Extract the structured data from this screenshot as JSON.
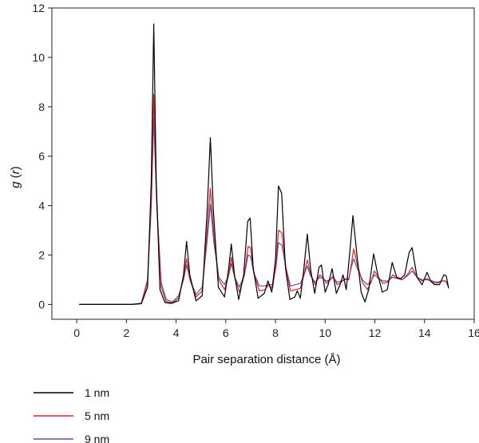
{
  "chart_data": {
    "type": "line",
    "xlabel": "Pair separation distance (Å)",
    "ylabel": {
      "g": "g",
      "r": "r"
    },
    "xlim": [
      -1,
      16
    ],
    "ylim": [
      -0.6,
      12
    ],
    "xticks": [
      0,
      2,
      4,
      6,
      8,
      10,
      12,
      14,
      16
    ],
    "yticks": [
      0,
      2,
      4,
      6,
      8,
      10,
      12
    ],
    "grid": false,
    "legend": "bottom-left below plot",
    "series": [
      {
        "name": "1 nm",
        "color": "#000000",
        "points": [
          [
            0.1,
            0
          ],
          [
            2.2,
            0
          ],
          [
            2.6,
            0.03
          ],
          [
            2.85,
            0.7
          ],
          [
            3.0,
            5.0
          ],
          [
            3.1,
            11.35
          ],
          [
            3.2,
            5.0
          ],
          [
            3.35,
            0.6
          ],
          [
            3.55,
            0.08
          ],
          [
            3.8,
            0.04
          ],
          [
            4.1,
            0.15
          ],
          [
            4.3,
            1.2
          ],
          [
            4.42,
            2.55
          ],
          [
            4.55,
            1.2
          ],
          [
            4.8,
            0.15
          ],
          [
            5.05,
            0.35
          ],
          [
            5.25,
            3.8
          ],
          [
            5.38,
            6.75
          ],
          [
            5.5,
            3.8
          ],
          [
            5.7,
            0.7
          ],
          [
            5.95,
            0.3
          ],
          [
            6.12,
            1.5
          ],
          [
            6.22,
            2.45
          ],
          [
            6.35,
            1.2
          ],
          [
            6.52,
            0.2
          ],
          [
            6.72,
            1.2
          ],
          [
            6.88,
            3.35
          ],
          [
            6.98,
            3.5
          ],
          [
            7.1,
            1.5
          ],
          [
            7.3,
            0.25
          ],
          [
            7.55,
            0.45
          ],
          [
            7.7,
            0.95
          ],
          [
            7.85,
            0.5
          ],
          [
            8.0,
            1.8
          ],
          [
            8.12,
            4.8
          ],
          [
            8.25,
            4.5
          ],
          [
            8.4,
            1.5
          ],
          [
            8.58,
            0.2
          ],
          [
            8.78,
            0.3
          ],
          [
            8.88,
            0.55
          ],
          [
            9.0,
            0.25
          ],
          [
            9.15,
            1.5
          ],
          [
            9.28,
            2.85
          ],
          [
            9.42,
            1.4
          ],
          [
            9.58,
            0.45
          ],
          [
            9.75,
            1.5
          ],
          [
            9.85,
            1.6
          ],
          [
            10.0,
            0.5
          ],
          [
            10.12,
            0.8
          ],
          [
            10.28,
            1.45
          ],
          [
            10.45,
            0.45
          ],
          [
            10.6,
            0.8
          ],
          [
            10.72,
            1.2
          ],
          [
            10.85,
            0.6
          ],
          [
            11.0,
            2.2
          ],
          [
            11.12,
            3.6
          ],
          [
            11.28,
            2.0
          ],
          [
            11.45,
            0.5
          ],
          [
            11.6,
            0.1
          ],
          [
            11.75,
            0.6
          ],
          [
            11.95,
            2.05
          ],
          [
            12.12,
            1.2
          ],
          [
            12.3,
            0.5
          ],
          [
            12.5,
            0.6
          ],
          [
            12.7,
            1.7
          ],
          [
            12.88,
            1.1
          ],
          [
            13.05,
            1.05
          ],
          [
            13.2,
            1.2
          ],
          [
            13.38,
            2.1
          ],
          [
            13.5,
            2.3
          ],
          [
            13.7,
            1.1
          ],
          [
            13.9,
            0.8
          ],
          [
            14.1,
            1.3
          ],
          [
            14.25,
            0.95
          ],
          [
            14.4,
            0.8
          ],
          [
            14.6,
            0.8
          ],
          [
            14.78,
            1.2
          ],
          [
            14.88,
            1.15
          ],
          [
            14.97,
            0.65
          ]
        ]
      },
      {
        "name": "5 nm",
        "color": "#e02020",
        "points": [
          [
            0.1,
            0
          ],
          [
            2.2,
            0
          ],
          [
            2.6,
            0.04
          ],
          [
            2.85,
            0.9
          ],
          [
            3.0,
            4.2
          ],
          [
            3.1,
            8.5
          ],
          [
            3.22,
            4.2
          ],
          [
            3.4,
            0.7
          ],
          [
            3.6,
            0.12
          ],
          [
            3.85,
            0.06
          ],
          [
            4.1,
            0.25
          ],
          [
            4.3,
            1.1
          ],
          [
            4.42,
            1.85
          ],
          [
            4.56,
            1.0
          ],
          [
            4.8,
            0.3
          ],
          [
            5.05,
            0.55
          ],
          [
            5.25,
            3.0
          ],
          [
            5.38,
            4.7
          ],
          [
            5.52,
            2.8
          ],
          [
            5.72,
            1.0
          ],
          [
            5.95,
            0.6
          ],
          [
            6.12,
            1.2
          ],
          [
            6.22,
            1.9
          ],
          [
            6.36,
            1.1
          ],
          [
            6.55,
            0.5
          ],
          [
            6.75,
            1.2
          ],
          [
            6.9,
            2.35
          ],
          [
            7.0,
            2.3
          ],
          [
            7.12,
            1.3
          ],
          [
            7.35,
            0.55
          ],
          [
            7.58,
            0.6
          ],
          [
            7.72,
            0.8
          ],
          [
            7.88,
            0.65
          ],
          [
            8.02,
            1.6
          ],
          [
            8.12,
            3.0
          ],
          [
            8.26,
            2.9
          ],
          [
            8.42,
            1.5
          ],
          [
            8.6,
            0.55
          ],
          [
            8.8,
            0.6
          ],
          [
            9.0,
            0.65
          ],
          [
            9.15,
            1.2
          ],
          [
            9.28,
            1.8
          ],
          [
            9.42,
            1.2
          ],
          [
            9.6,
            0.8
          ],
          [
            9.78,
            1.2
          ],
          [
            9.9,
            1.1
          ],
          [
            10.05,
            0.85
          ],
          [
            10.2,
            1.0
          ],
          [
            10.32,
            1.15
          ],
          [
            10.48,
            0.8
          ],
          [
            10.65,
            0.9
          ],
          [
            10.8,
            1.05
          ],
          [
            10.95,
            1.0
          ],
          [
            11.05,
            1.6
          ],
          [
            11.15,
            2.25
          ],
          [
            11.3,
            1.6
          ],
          [
            11.5,
            0.9
          ],
          [
            11.7,
            0.6
          ],
          [
            11.85,
            0.9
          ],
          [
            11.98,
            1.35
          ],
          [
            12.15,
            1.1
          ],
          [
            12.32,
            0.85
          ],
          [
            12.52,
            0.9
          ],
          [
            12.72,
            1.2
          ],
          [
            12.9,
            1.05
          ],
          [
            13.1,
            1.0
          ],
          [
            13.3,
            1.2
          ],
          [
            13.5,
            1.5
          ],
          [
            13.7,
            1.1
          ],
          [
            13.9,
            0.95
          ],
          [
            14.1,
            1.05
          ],
          [
            14.3,
            0.9
          ],
          [
            14.5,
            0.85
          ],
          [
            14.7,
            0.95
          ],
          [
            14.85,
            0.95
          ],
          [
            14.97,
            0.7
          ]
        ]
      },
      {
        "name": "9 nm",
        "color": "#4a5aa8",
        "points": [
          [
            0.1,
            0
          ],
          [
            2.2,
            0
          ],
          [
            2.6,
            0.05
          ],
          [
            2.85,
            1.0
          ],
          [
            3.0,
            4.0
          ],
          [
            3.1,
            7.55
          ],
          [
            3.22,
            4.0
          ],
          [
            3.4,
            0.9
          ],
          [
            3.6,
            0.2
          ],
          [
            3.85,
            0.1
          ],
          [
            4.1,
            0.35
          ],
          [
            4.3,
            1.0
          ],
          [
            4.42,
            1.6
          ],
          [
            4.56,
            1.0
          ],
          [
            4.8,
            0.4
          ],
          [
            5.05,
            0.7
          ],
          [
            5.25,
            2.6
          ],
          [
            5.38,
            4.05
          ],
          [
            5.52,
            2.5
          ],
          [
            5.72,
            1.1
          ],
          [
            5.95,
            0.8
          ],
          [
            6.12,
            1.2
          ],
          [
            6.22,
            1.65
          ],
          [
            6.36,
            1.1
          ],
          [
            6.55,
            0.7
          ],
          [
            6.75,
            1.2
          ],
          [
            6.9,
            2.0
          ],
          [
            7.0,
            1.95
          ],
          [
            7.12,
            1.3
          ],
          [
            7.35,
            0.75
          ],
          [
            7.58,
            0.75
          ],
          [
            7.72,
            0.8
          ],
          [
            7.88,
            0.8
          ],
          [
            8.02,
            1.5
          ],
          [
            8.12,
            2.5
          ],
          [
            8.26,
            2.4
          ],
          [
            8.42,
            1.5
          ],
          [
            8.6,
            0.75
          ],
          [
            8.8,
            0.8
          ],
          [
            9.0,
            0.85
          ],
          [
            9.15,
            1.2
          ],
          [
            9.28,
            1.55
          ],
          [
            9.42,
            1.15
          ],
          [
            9.6,
            0.9
          ],
          [
            9.78,
            1.1
          ],
          [
            9.9,
            1.05
          ],
          [
            10.05,
            0.95
          ],
          [
            10.2,
            1.0
          ],
          [
            10.32,
            1.1
          ],
          [
            10.48,
            0.9
          ],
          [
            10.65,
            0.95
          ],
          [
            10.8,
            1.0
          ],
          [
            10.95,
            1.05
          ],
          [
            11.05,
            1.5
          ],
          [
            11.15,
            1.85
          ],
          [
            11.3,
            1.45
          ],
          [
            11.5,
            1.0
          ],
          [
            11.7,
            0.8
          ],
          [
            11.85,
            0.95
          ],
          [
            11.98,
            1.2
          ],
          [
            12.15,
            1.05
          ],
          [
            12.32,
            0.95
          ],
          [
            12.52,
            0.95
          ],
          [
            12.72,
            1.1
          ],
          [
            12.9,
            1.05
          ],
          [
            13.1,
            1.0
          ],
          [
            13.3,
            1.15
          ],
          [
            13.5,
            1.35
          ],
          [
            13.7,
            1.1
          ],
          [
            13.9,
            1.0
          ],
          [
            14.1,
            1.0
          ],
          [
            14.3,
            0.95
          ],
          [
            14.5,
            0.9
          ],
          [
            14.7,
            0.95
          ],
          [
            14.85,
            0.95
          ],
          [
            14.97,
            0.75
          ]
        ]
      }
    ]
  }
}
